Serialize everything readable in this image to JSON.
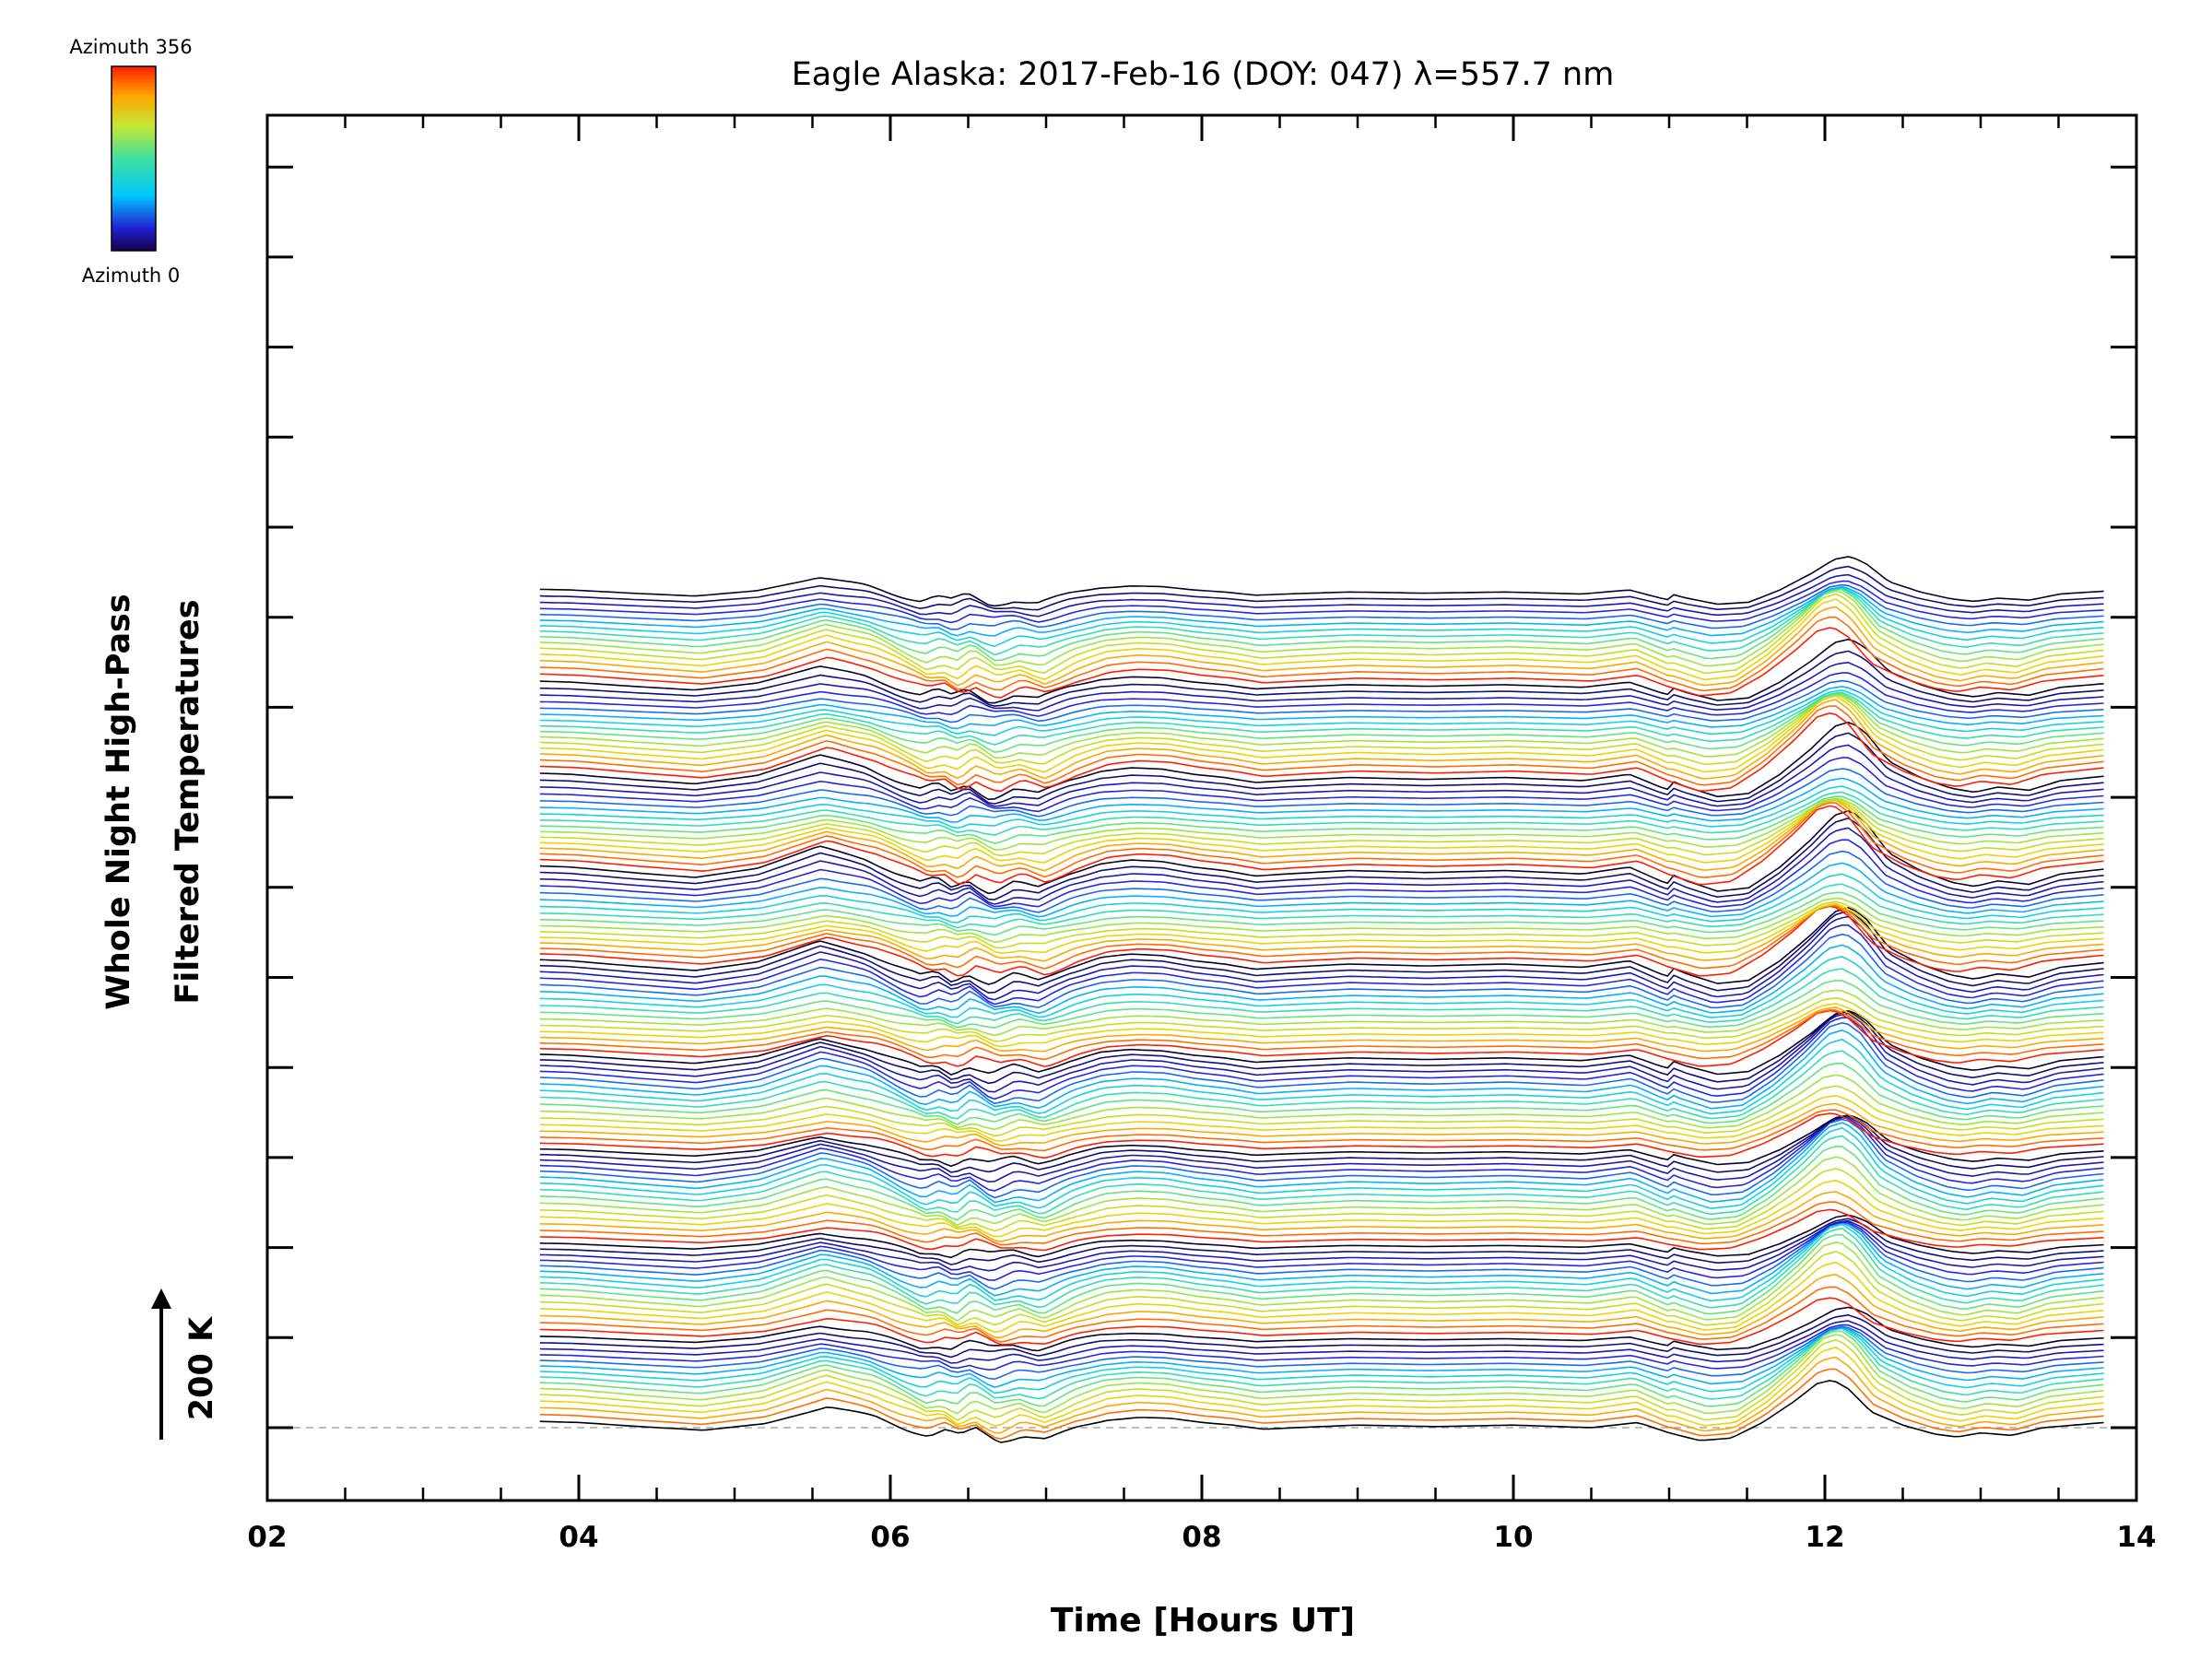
{
  "chart_data": {
    "type": "line",
    "title": "Eagle Alaska: 2017-Feb-16 (DOY: 047) λ=557.7 nm",
    "xlabel": "Time [Hours UT]",
    "ylabel_line1": "Whole Night High-Pass",
    "ylabel_line2": "Filtered Temperatures",
    "xlim": [
      2,
      14
    ],
    "x_ticks": [
      "02",
      "04",
      "06",
      "08",
      "10",
      "12",
      "14"
    ],
    "x_start": 3.75,
    "x_end": 13.8,
    "scale_bar_label": "200 K",
    "scale_bar_value_K": 200,
    "colorbar_top_label": "Azimuth 356",
    "colorbar_bottom_label": "Azimuth 0",
    "azimuth_range": [
      0,
      356
    ],
    "trace_offset_K": 9.0,
    "trace_groups": 9,
    "trace_count": 135,
    "baseline_dashed": true,
    "base_profile": {
      "x": [
        3.75,
        4.0,
        4.4,
        4.8,
        5.2,
        5.6,
        5.9,
        6.1,
        6.25,
        6.35,
        6.45,
        6.55,
        6.7,
        6.85,
        7.0,
        7.2,
        7.4,
        7.6,
        7.8,
        8.0,
        8.2,
        8.4,
        8.6,
        9.0,
        9.5,
        10.0,
        10.5,
        10.8,
        11.0,
        11.2,
        11.4,
        11.6,
        11.8,
        11.95,
        12.05,
        12.15,
        12.3,
        12.5,
        12.7,
        12.85,
        13.0,
        13.2,
        13.4,
        13.6,
        13.8
      ],
      "y": [
        12,
        10,
        2,
        -5,
        8,
        40,
        22,
        0,
        -15,
        -8,
        -20,
        -5,
        -25,
        -12,
        -22,
        0,
        15,
        20,
        18,
        10,
        5,
        -3,
        0,
        5,
        2,
        5,
        0,
        10,
        -10,
        -25,
        -20,
        10,
        50,
        85,
        92,
        75,
        30,
        5,
        -12,
        -18,
        -10,
        -15,
        0,
        5,
        10
      ]
    },
    "wave_features": [
      {
        "x": 12.0,
        "shift_per_trace": 0.0045
      },
      {
        "x": 5.6,
        "shift_per_trace": -0.003
      }
    ]
  }
}
